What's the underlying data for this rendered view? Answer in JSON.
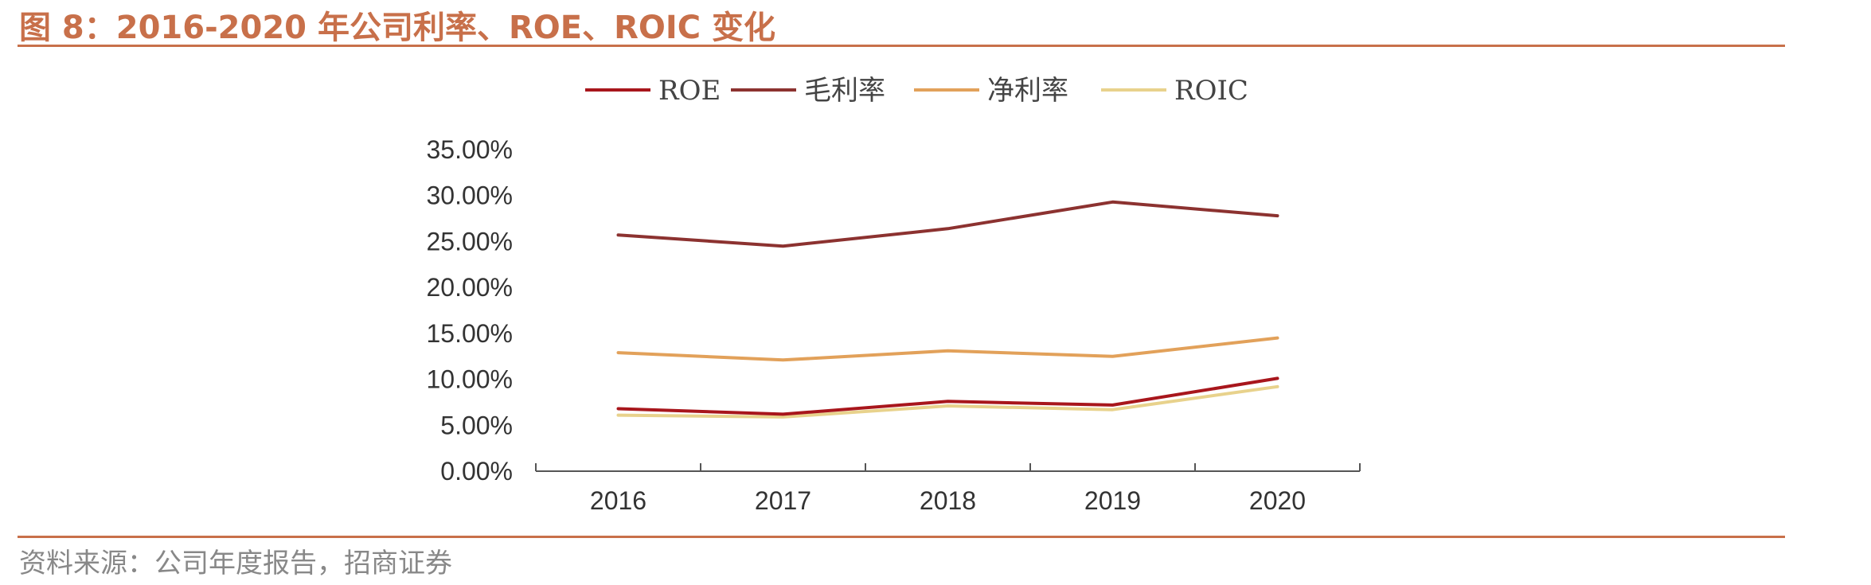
{
  "header": {
    "title": "图 8：2016-2020 年公司利率、ROE、ROIC 变化"
  },
  "footer": {
    "source": "资料来源：公司年度报告，招商证券"
  },
  "chart_data": {
    "type": "line",
    "title": "",
    "xlabel": "",
    "ylabel": "",
    "x": [
      "2016",
      "2017",
      "2018",
      "2019",
      "2020"
    ],
    "ylim": [
      0,
      0.35
    ],
    "yticks": [
      0,
      0.05,
      0.1,
      0.15,
      0.2,
      0.25,
      0.3,
      0.35
    ],
    "ytick_labels": [
      "0.00%",
      "5.00%",
      "10.00%",
      "15.00%",
      "20.00%",
      "25.00%",
      "30.00%",
      "35.00%"
    ],
    "legend_position": "top-center",
    "grid": false,
    "series": [
      {
        "name": "ROE",
        "color": "#A8161C",
        "values": [
          0.068,
          0.062,
          0.076,
          0.072,
          0.101
        ]
      },
      {
        "name": "毛利率",
        "color": "#8C3230",
        "values": [
          0.257,
          0.245,
          0.264,
          0.293,
          0.278
        ]
      },
      {
        "name": "净利率",
        "color": "#E2A15A",
        "values": [
          0.129,
          0.121,
          0.131,
          0.125,
          0.145
        ]
      },
      {
        "name": "ROIC",
        "color": "#E8D28C",
        "values": [
          0.061,
          0.059,
          0.071,
          0.067,
          0.092
        ]
      }
    ]
  }
}
